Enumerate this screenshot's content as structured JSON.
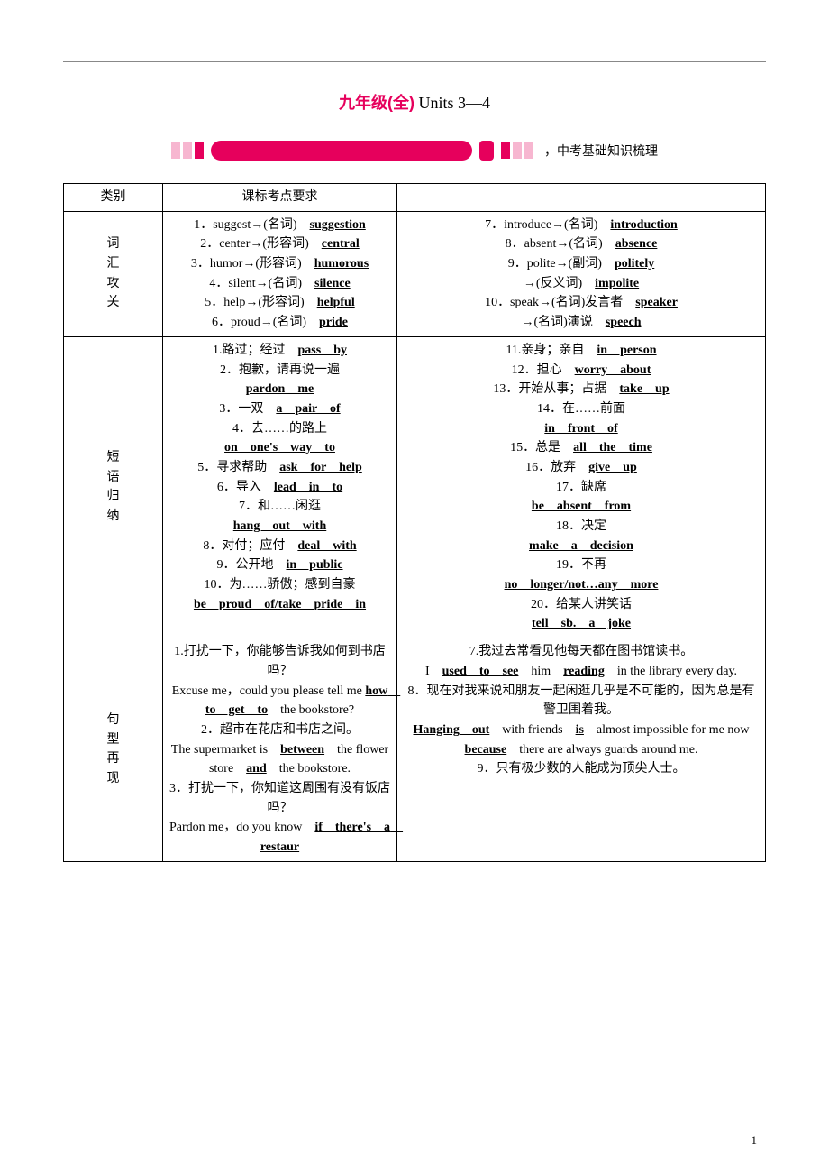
{
  "title": {
    "red": "九年级(全)",
    "black": " Units 3—4"
  },
  "banner_suffix": "，中考基础知识梳理",
  "banner_colors": {
    "pink": "#f7b6d0",
    "magenta": "#e6005c"
  },
  "header": {
    "col1": "类别",
    "col2": "课标考点要求"
  },
  "row1": {
    "label_chars": [
      "词",
      "汇",
      "攻",
      "关"
    ],
    "left": [
      {
        "pre": "1．suggest→(名词)",
        "u": "suggestion"
      },
      {
        "pre": "2．center→(形容词)",
        "u": "central"
      },
      {
        "pre": "3．humor→(形容词)",
        "u": "humorous"
      },
      {
        "pre": "4．silent→(名词)",
        "u": "silence"
      },
      {
        "pre": "5．help→(形容词)",
        "u": "helpful"
      },
      {
        "pre": "6．proud→(名词)",
        "u": "pride"
      }
    ],
    "right": [
      {
        "pre": "7．introduce→(名词)",
        "u": "introduction"
      },
      {
        "pre": "8．absent→(名词)",
        "u": "absence"
      },
      {
        "pre": "9．polite→(副词)",
        "u": "politely"
      },
      {
        "pre": "→(反义词)",
        "u": "impolite"
      },
      {
        "pre": "10．speak→(名词)发言者",
        "u": "speaker"
      },
      {
        "pre": "→(名词)演说",
        "u": "speech"
      }
    ]
  },
  "row2": {
    "label_chars": [
      "短",
      "语",
      "归",
      "纳"
    ],
    "left": [
      {
        "cn": "1.路过；经过",
        "u": "pass　by"
      },
      {
        "cn": "2．抱歉，请再说一遍",
        "u": "pardon　me"
      },
      {
        "cn": "3．一双",
        "u": "a　pair　of"
      },
      {
        "cn": "4．去……的路上",
        "u": "on　one's　way　to"
      },
      {
        "cn": "5．寻求帮助",
        "u": "ask　for　help"
      },
      {
        "cn": "6．导入",
        "u": "lead　in　to"
      },
      {
        "cn": "7．和……闲逛",
        "u": "hang　out　with"
      },
      {
        "cn": "8．对付；应付",
        "u": "deal　with"
      },
      {
        "cn": "9．公开地",
        "u": "in　public"
      },
      {
        "cn": "10．为……骄傲；感到自豪",
        "u": "be　proud　of/take　pride　in"
      }
    ],
    "right": [
      {
        "cn": "11.亲身；亲自",
        "u": "in　person"
      },
      {
        "cn": "12．担心",
        "u": "worry　about"
      },
      {
        "cn": "13．开始从事；占据",
        "u": "take　up"
      },
      {
        "cn": "14．在……前面",
        "u": "in　front　of"
      },
      {
        "cn": "15．总是",
        "u": "all　the　time"
      },
      {
        "cn": "16．放弃",
        "u": "give　up"
      },
      {
        "cn": "17．缺席",
        "u": "be　absent　from"
      },
      {
        "cn": "18．决定",
        "u": "make　a　decision"
      },
      {
        "cn": "19．不再",
        "u": "no　longer/not…any　more"
      },
      {
        "cn": "20．给某人讲笑话",
        "u": "tell　sb.　a　joke"
      }
    ]
  },
  "row3": {
    "label_chars": [
      "句",
      "型",
      "再",
      "现"
    ],
    "left_html": "1.打扰一下，你能够告诉我如何到书店吗？<br>Excuse me，could you please tell me <span class='u'>how　to　get　to</span>　the bookstore?<br>2．超市在花店和书店之间。<br>The supermarket is　<span class='u'>between</span>　the flower store　<span class='u'>and</span>　the bookstore.<br>3．打扰一下，你知道这周围有没有饭店吗？<br>Pardon me，do you know　<span class='u'>if　there's　a　restaur</span>",
    "right_html": "7.我过去常看见他每天都在图书馆读书。<br>I　<span class='u'>used　to　see</span>　him　<span class='u'>reading</span>　in the library every day.<br>8．现在对我来说和朋友一起闲逛几乎是不可能的，因为总是有警卫围着我。<br><span class='u'>Hanging　out</span>　with friends　<span class='u'>is</span>　almost impossible for me now　<span class='u'>because</span>　there are always guards around me.<br>9．只有极少数的人能成为顶尖人士。"
  },
  "page_number": "1"
}
